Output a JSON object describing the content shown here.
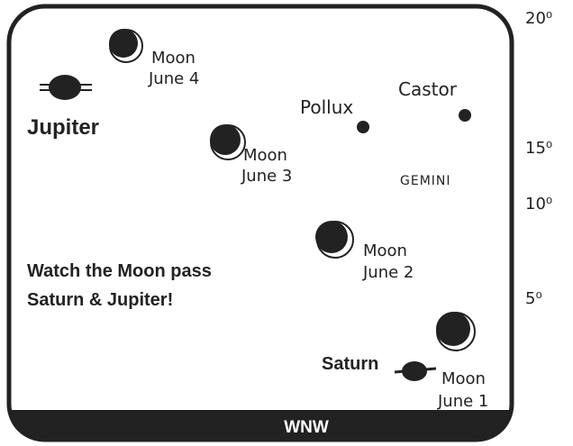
{
  "altitude_labels": [
    "20⁰",
    "15⁰",
    "10⁰",
    "5⁰"
  ],
  "direction": "WNW",
  "planets": {
    "jupiter": "Jupiter",
    "saturn": "Saturn"
  },
  "stars": {
    "pollux": "Pollux",
    "castor": "Castor"
  },
  "constellation": "GEMINI",
  "moons": [
    {
      "name": "Moon",
      "date": "June 4"
    },
    {
      "name": "Moon",
      "date": "June 3"
    },
    {
      "name": "Moon",
      "date": "June 2"
    },
    {
      "name": "Moon",
      "date": "June 1"
    }
  ],
  "caption": [
    "Watch the Moon pass",
    "Saturn & Jupiter!"
  ]
}
